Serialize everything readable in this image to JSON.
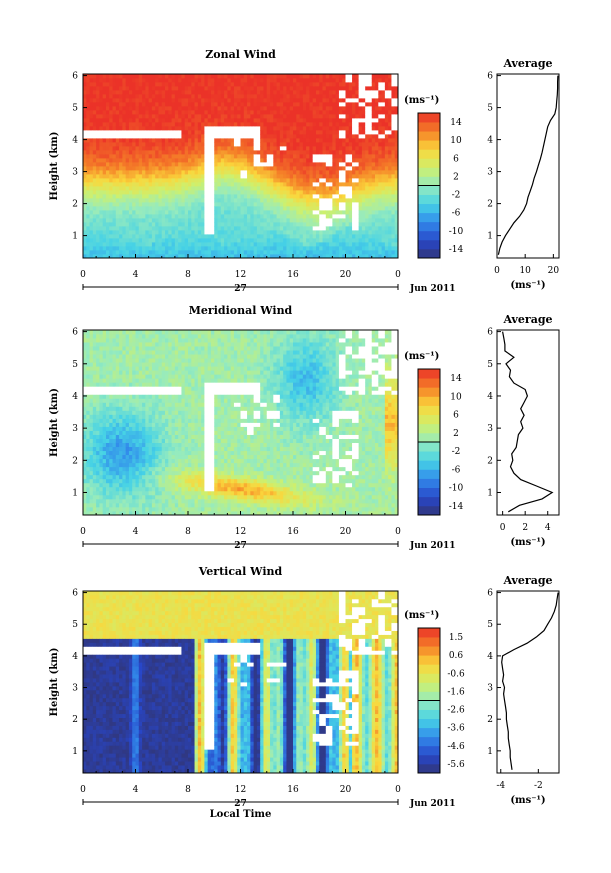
{
  "chart_data": [
    {
      "type": "heatmap",
      "title": "Zonal Wind",
      "ylabel": "Height (km)",
      "x_ticks": [
        "0",
        "4",
        "8",
        "12",
        "16",
        "20",
        "0"
      ],
      "y_ticks": [
        "1",
        "2",
        "3",
        "4",
        "5",
        "6"
      ],
      "xlim": [
        0,
        24
      ],
      "ylim": [
        0.3,
        6.05
      ],
      "date_day": "27",
      "date_month": "Jun 2011",
      "colorbar": {
        "unit_label": "(ms⁻¹)",
        "ticks": [
          "14",
          "10",
          "6",
          "2",
          "-2",
          "-6",
          "-10",
          "-14"
        ],
        "range": [
          -16,
          16
        ]
      },
      "profile": {
        "title": "Average",
        "x_ticks": [
          "0",
          "10",
          "20"
        ],
        "xlim": [
          0,
          22
        ],
        "xlabel": "(ms⁻¹)",
        "heights": [
          0.4,
          0.6,
          0.8,
          1.0,
          1.2,
          1.4,
          1.6,
          1.8,
          2.0,
          2.2,
          2.4,
          2.6,
          2.8,
          3.0,
          3.2,
          3.4,
          3.6,
          3.8,
          4.0,
          4.2,
          4.4,
          4.6,
          4.8,
          5.0,
          5.2,
          5.4,
          5.6,
          5.8,
          6.0
        ],
        "values": [
          0.5,
          1.0,
          1.8,
          3.0,
          4.5,
          6.0,
          8.0,
          9.5,
          10.5,
          11.0,
          11.8,
          12.6,
          13.2,
          14.0,
          14.7,
          15.4,
          16.0,
          16.5,
          17.0,
          17.5,
          18.0,
          19.0,
          20.5,
          21.0,
          21.2,
          21.4,
          21.5,
          21.5,
          21.6
        ]
      }
    },
    {
      "type": "heatmap",
      "title": "Meridional Wind",
      "ylabel": "Height (km)",
      "x_ticks": [
        "0",
        "4",
        "8",
        "12",
        "16",
        "20",
        "0"
      ],
      "y_ticks": [
        "1",
        "2",
        "3",
        "4",
        "5",
        "6"
      ],
      "xlim": [
        0,
        24
      ],
      "ylim": [
        0.3,
        6.05
      ],
      "date_day": "27",
      "date_month": "Jun 2011",
      "colorbar": {
        "unit_label": "(ms⁻¹)",
        "ticks": [
          "14",
          "10",
          "6",
          "2",
          "-2",
          "-6",
          "-10",
          "-14"
        ],
        "range": [
          -16,
          16
        ]
      },
      "profile": {
        "title": "Average",
        "x_ticks": [
          "0",
          "2",
          "4"
        ],
        "xlim": [
          -0.5,
          5
        ],
        "xlabel": "(ms⁻¹)",
        "heights": [
          0.4,
          0.6,
          0.8,
          1.0,
          1.2,
          1.4,
          1.6,
          1.8,
          2.0,
          2.2,
          2.4,
          2.6,
          2.8,
          3.0,
          3.2,
          3.4,
          3.6,
          3.8,
          4.0,
          4.2,
          4.4,
          4.6,
          4.8,
          5.0,
          5.2,
          5.4,
          5.6,
          5.8,
          6.0
        ],
        "values": [
          0.5,
          1.5,
          3.5,
          4.4,
          3.0,
          1.6,
          1.0,
          0.7,
          0.9,
          0.8,
          1.2,
          1.3,
          1.4,
          1.8,
          1.6,
          1.9,
          1.6,
          1.9,
          2.2,
          2.0,
          1.0,
          0.6,
          0.7,
          0.3,
          1.0,
          0.2,
          0.2,
          0.1,
          0.0
        ]
      }
    },
    {
      "type": "heatmap",
      "title": "Vertical Wind",
      "ylabel": "Height (km)",
      "xlabel": "Local Time",
      "x_ticks": [
        "0",
        "4",
        "8",
        "12",
        "16",
        "20",
        "0"
      ],
      "y_ticks": [
        "1",
        "2",
        "3",
        "4",
        "5",
        "6"
      ],
      "xlim": [
        0,
        24
      ],
      "ylim": [
        0.3,
        6.05
      ],
      "date_day": "27",
      "date_month": "Jun 2011",
      "colorbar": {
        "unit_label": "(ms⁻¹)",
        "ticks": [
          "1.5",
          "0.6",
          "-0.6",
          "-1.6",
          "-2.6",
          "-3.6",
          "-4.6",
          "-5.6"
        ],
        "range": [
          -6.0,
          2.0
        ]
      },
      "profile": {
        "title": "Average",
        "x_ticks": [
          "-4",
          "-2"
        ],
        "xlim": [
          -4.2,
          -0.9
        ],
        "xlabel": "(ms⁻¹)",
        "heights": [
          0.4,
          0.6,
          0.8,
          1.0,
          1.2,
          1.4,
          1.6,
          1.8,
          2.0,
          2.2,
          2.4,
          2.6,
          2.8,
          3.0,
          3.2,
          3.4,
          3.6,
          3.8,
          4.0,
          4.2,
          4.4,
          4.6,
          4.8,
          5.0,
          5.2,
          5.4,
          5.6,
          5.8,
          6.0
        ],
        "values": [
          -3.4,
          -3.45,
          -3.5,
          -3.5,
          -3.55,
          -3.6,
          -3.6,
          -3.65,
          -3.7,
          -3.7,
          -3.75,
          -3.8,
          -3.85,
          -3.8,
          -3.9,
          -3.85,
          -3.9,
          -3.95,
          -3.9,
          -3.3,
          -2.6,
          -2.1,
          -1.7,
          -1.5,
          -1.3,
          -1.15,
          -1.05,
          -1.0,
          -0.95
        ]
      }
    }
  ]
}
